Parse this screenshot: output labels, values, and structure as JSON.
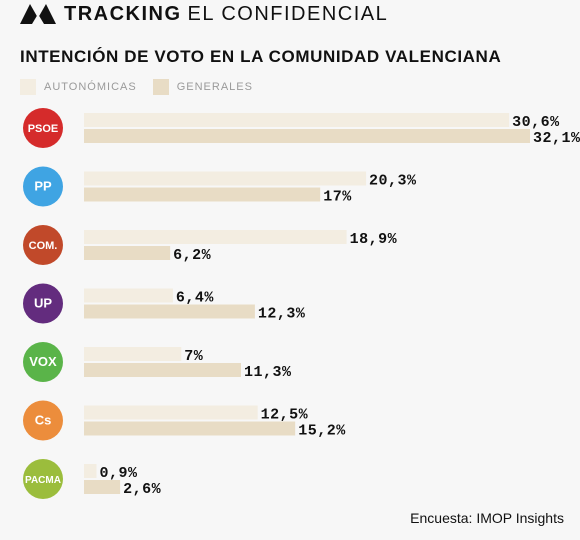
{
  "header": {
    "brand_strong": "TRACKING",
    "brand_light": "EL CONFIDENCIAL",
    "logo_icon": "triangle-logo-icon"
  },
  "legend": [
    {
      "label": "AUTONÓMICAS",
      "color": "#f3ede1"
    },
    {
      "label": "GENERALES",
      "color": "#e8dcc5"
    }
  ],
  "source": "Encuesta: IMOP Insights",
  "chart_data": {
    "type": "bar",
    "orientation": "horizontal",
    "title": "INTENCIÓN DE VOTO EN LA COMUNIDAD VALENCIANA",
    "categories": [
      "PSOE",
      "PP",
      "COM.",
      "UP",
      "VOX",
      "Cs",
      "PACMA"
    ],
    "category_colors": [
      "#d52b2b",
      "#3fa4e3",
      "#c1492a",
      "#632c7e",
      "#5ab449",
      "#ec8d3c",
      "#9bbd3c"
    ],
    "series": [
      {
        "name": "AUTONÓMICAS",
        "color": "#f3ede1",
        "values": [
          30.6,
          20.3,
          18.9,
          6.4,
          7,
          12.5,
          0.9
        ],
        "labels": [
          "30,6%",
          "20,3%",
          "18,9%",
          "6,4%",
          "7%",
          "12,5%",
          "0,9%"
        ]
      },
      {
        "name": "GENERALES",
        "color": "#e8dcc5",
        "values": [
          32.1,
          17,
          6.2,
          12.3,
          11.3,
          15.2,
          2.6
        ],
        "labels": [
          "32,1%",
          "17%",
          "6,2%",
          "12,3%",
          "11,3%",
          "15,2%",
          "2,6%"
        ]
      }
    ],
    "xlim": [
      0,
      32.1
    ],
    "grid": false,
    "legend_position": "top-left"
  }
}
